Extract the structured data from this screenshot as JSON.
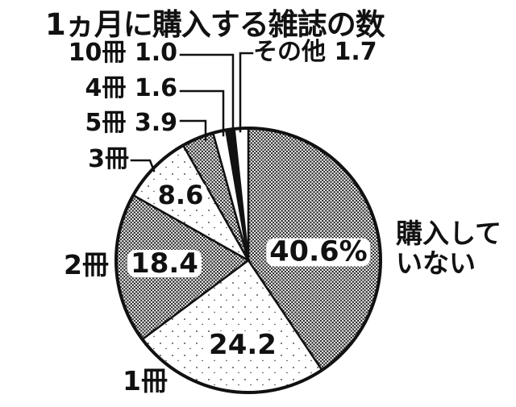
{
  "title": "1ヵ月に購入する雑誌の数",
  "colors": {
    "ink": "#111111",
    "paper": "#ffffff"
  },
  "chart_data": {
    "type": "pie",
    "title": "1ヵ月に購入する雑誌の数",
    "unit": "percent",
    "start_angle_deg": 0,
    "direction": "clockwise",
    "legend_position": "none",
    "slices": [
      {
        "label": "購入していない",
        "value": 40.6,
        "value_label": "40.6%",
        "pattern": "dots-dense",
        "label_placement": "outside-right"
      },
      {
        "label": "1冊",
        "value": 24.2,
        "value_label": "24.2",
        "pattern": "dots-sparse",
        "label_placement": "outside-bottom-left"
      },
      {
        "label": "2冊",
        "value": 18.4,
        "value_label": "18.4",
        "pattern": "dots-dense",
        "label_placement": "outside-left"
      },
      {
        "label": "3冊",
        "value": 8.6,
        "value_label": "8.6",
        "pattern": "dots-sparse",
        "label_placement": "callout"
      },
      {
        "label": "5冊",
        "value": 3.9,
        "value_label": "3.9",
        "pattern": "dots-dense",
        "label_placement": "callout"
      },
      {
        "label": "4冊",
        "value": 1.6,
        "value_label": "1.6",
        "pattern": "white",
        "label_placement": "callout"
      },
      {
        "label": "10冊",
        "value": 1.0,
        "value_label": "1.0",
        "pattern": "black",
        "label_placement": "callout"
      },
      {
        "label": "その他",
        "value": 1.7,
        "value_label": "1.7",
        "pattern": "white",
        "label_placement": "callout"
      }
    ]
  },
  "callouts": {
    "books10": "10冊 1.0",
    "books4": "4冊 1.6",
    "books5": "5冊 3.9",
    "books3": "3冊",
    "other": "その他 1.7",
    "none": "購入して\nいない",
    "books1": "1冊",
    "books2": "2冊"
  }
}
